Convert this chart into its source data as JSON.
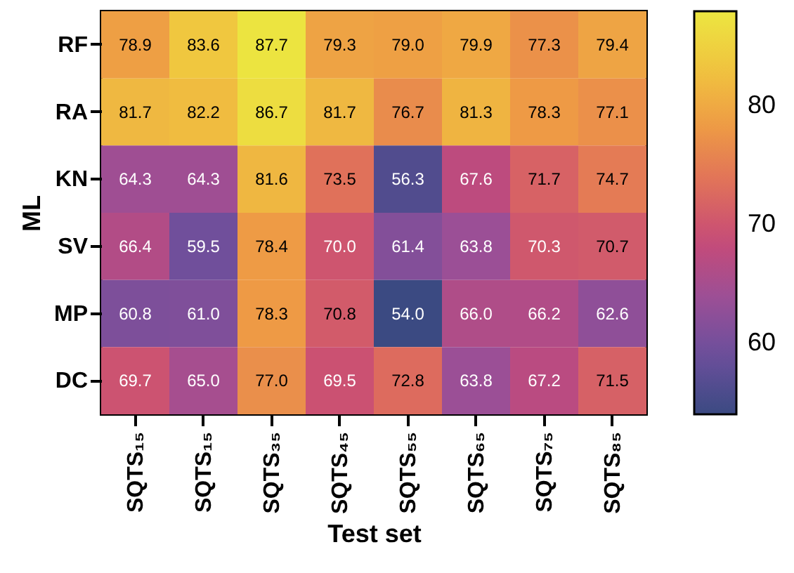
{
  "chart_data": {
    "type": "heatmap",
    "xlabel": "Test set",
    "ylabel": "ML",
    "categories": [
      "SQTS₁₅",
      "SQTS₁₅",
      "SQTS₃₅",
      "SQTS₄₅",
      "SQTS₅₅",
      "SQTS₆₅",
      "SQTS₇₅",
      "SQTS₈₅"
    ],
    "y_categories": [
      "RF",
      "RA",
      "KN",
      "SV",
      "MP",
      "DC"
    ],
    "cells": [
      [
        78.9,
        83.6,
        87.7,
        79.3,
        79.0,
        79.9,
        77.3,
        79.4
      ],
      [
        81.7,
        82.2,
        86.7,
        81.7,
        76.7,
        81.3,
        78.3,
        77.1
      ],
      [
        64.3,
        64.3,
        81.6,
        73.5,
        56.3,
        67.6,
        71.7,
        74.7
      ],
      [
        66.4,
        59.5,
        78.4,
        70.0,
        61.4,
        63.8,
        70.3,
        70.7
      ],
      [
        60.8,
        61.0,
        78.3,
        70.8,
        54.0,
        66.0,
        66.2,
        62.6
      ],
      [
        69.7,
        65.0,
        77.0,
        69.5,
        72.8,
        63.8,
        67.2,
        71.5
      ]
    ],
    "cell_labels": [
      [
        "78.9",
        "83.6",
        "87.7",
        "79.3",
        "79.0",
        "79.9",
        "77.3",
        "79.4"
      ],
      [
        "81.7",
        "82.2",
        "86.7",
        "81.7",
        "76.7",
        "81.3",
        "78.3",
        "77.1"
      ],
      [
        "64.3",
        "64.3",
        "81.6",
        "73.5",
        "56.3",
        "67.6",
        "71.7",
        "74.7"
      ],
      [
        "66.4",
        "59.5",
        "78.4",
        "70.0",
        "61.4",
        "63.8",
        "70.3",
        "70.7"
      ],
      [
        "60.8",
        "61.0",
        "78.3",
        "70.8",
        "54.0",
        "66.0",
        "66.2",
        "62.6"
      ],
      [
        "69.7",
        "65.0",
        "77.0",
        "69.5",
        "72.8",
        "63.8",
        "67.2",
        "71.5"
      ]
    ],
    "clim": [
      54,
      88
    ],
    "cticks": [
      60,
      70,
      80
    ]
  }
}
